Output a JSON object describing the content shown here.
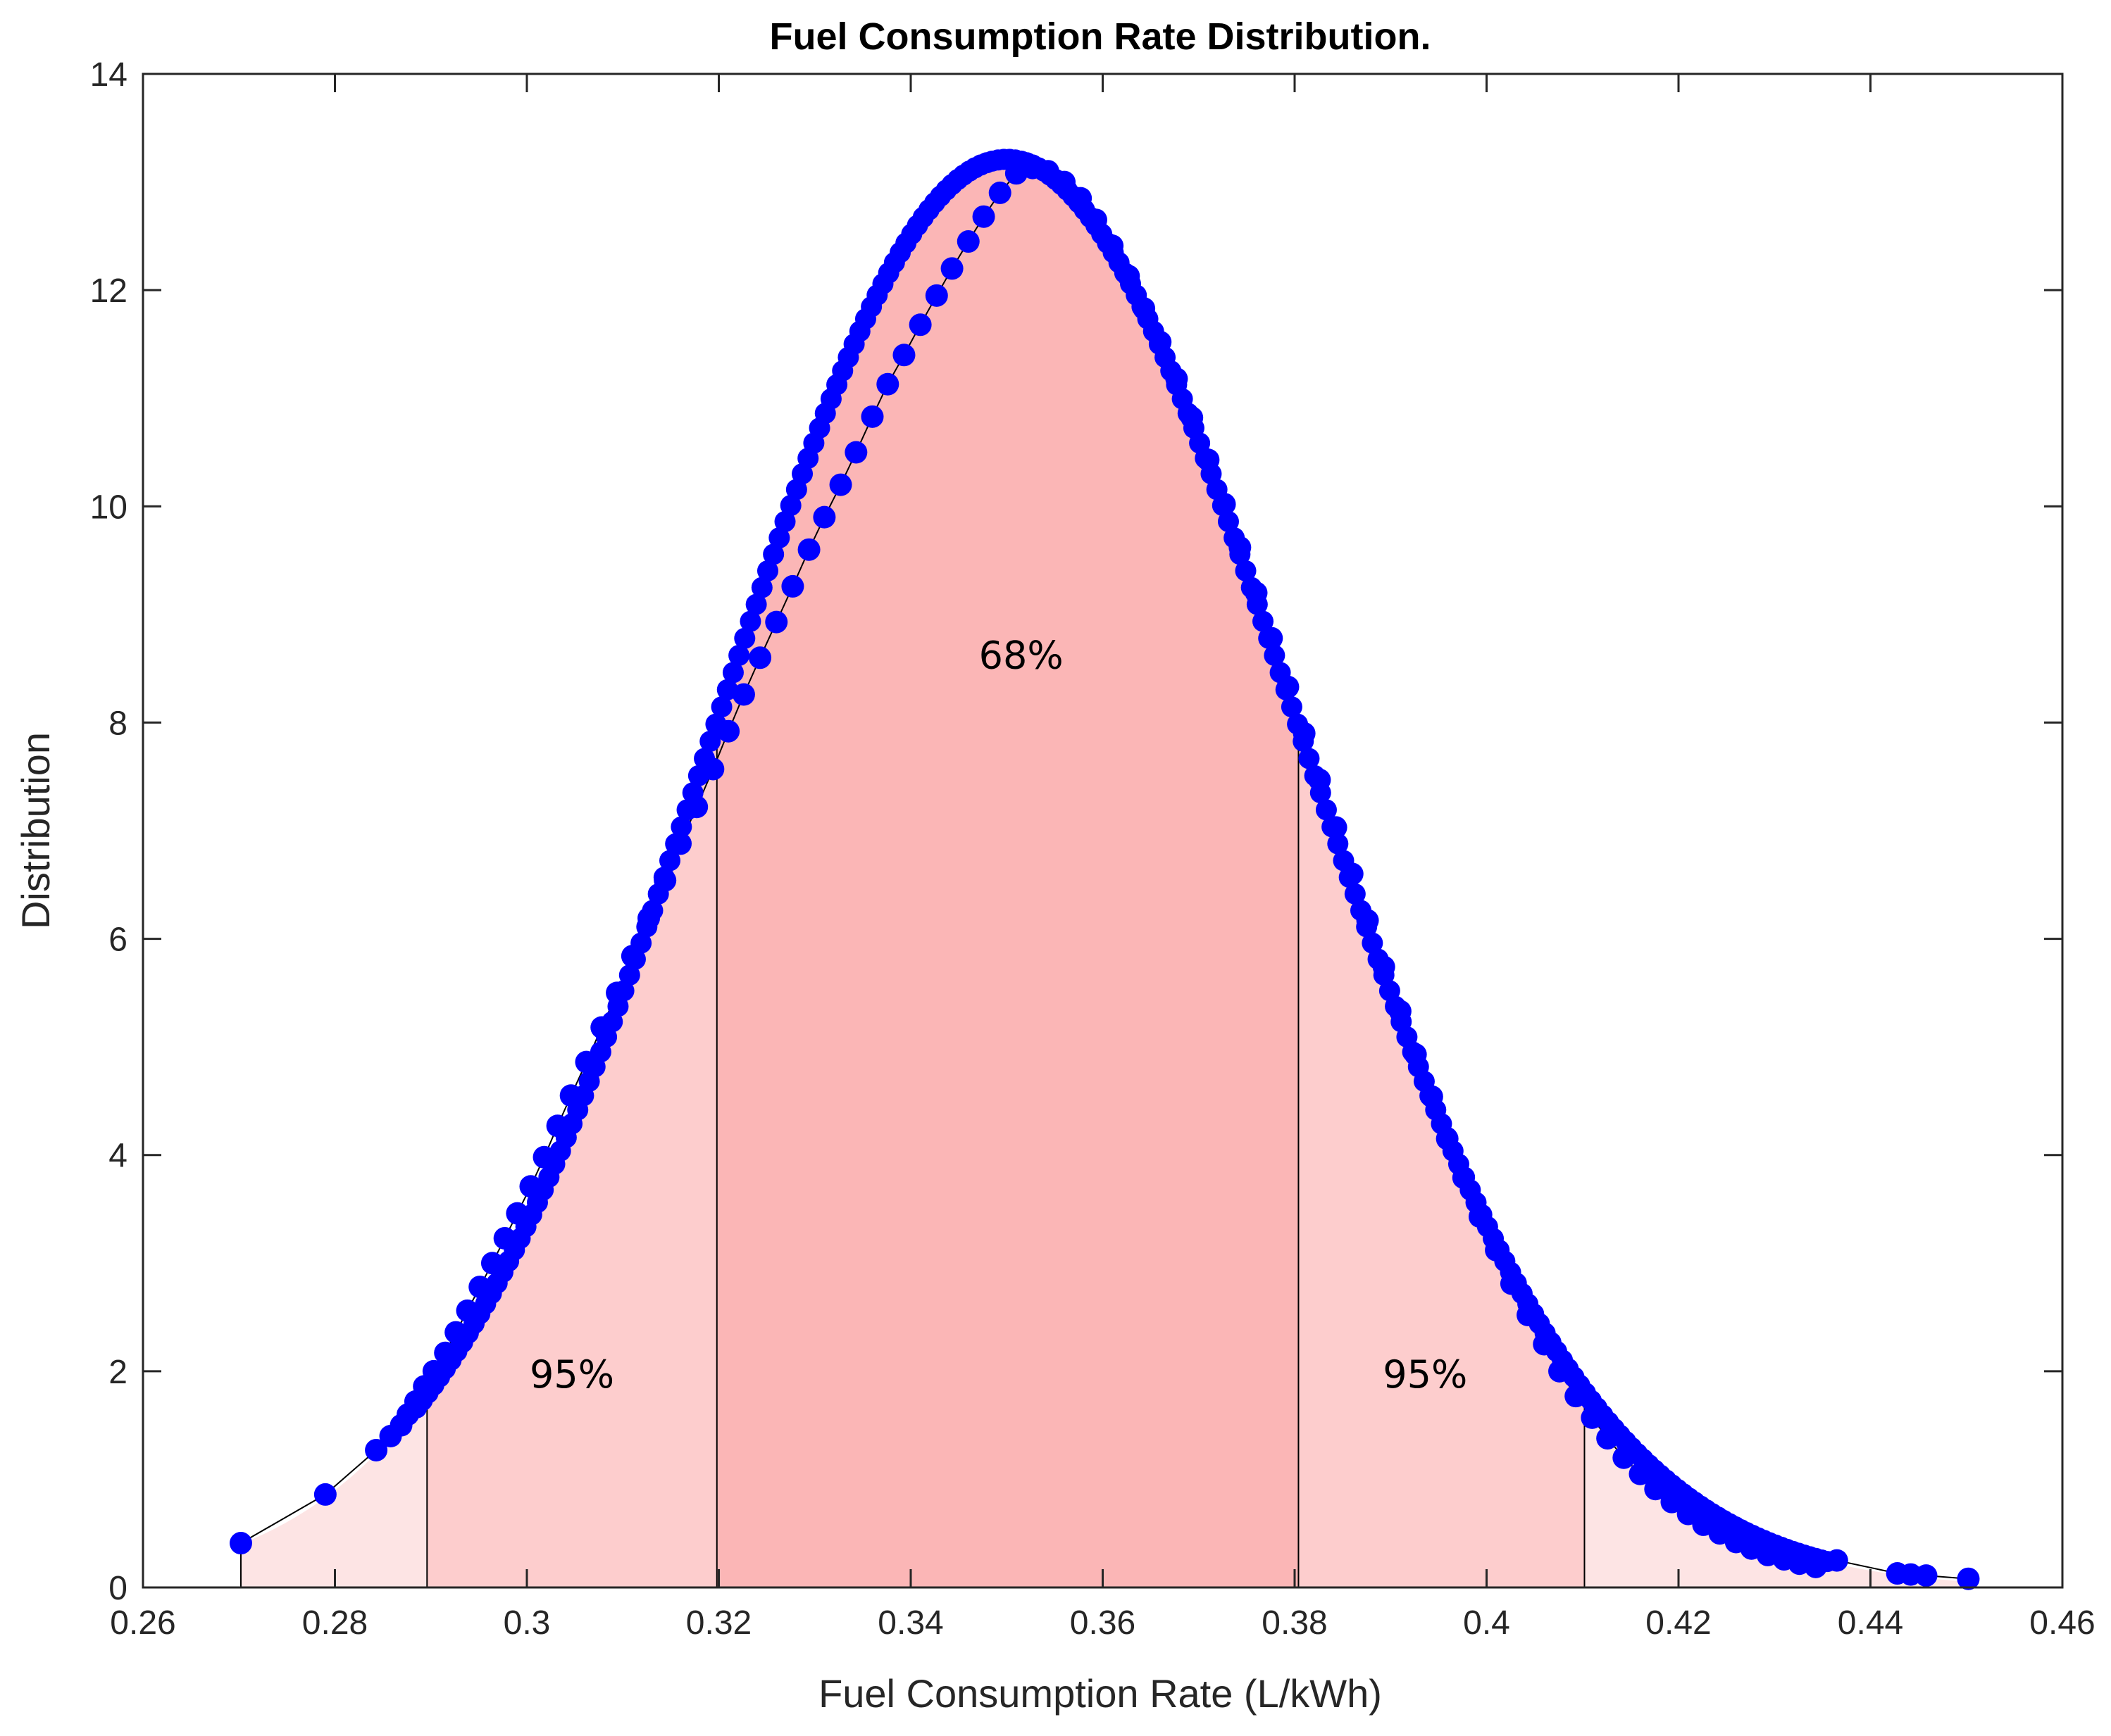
{
  "chart_data": {
    "type": "scatter",
    "title": "Fuel Consumption Rate Distribution.",
    "xlabel": "Fuel Consumption Rate (L/kWh)",
    "ylabel": "Distribution",
    "xlim": [
      0.26,
      0.46
    ],
    "ylim": [
      0,
      14
    ],
    "xticks": [
      0.26,
      0.28,
      0.3,
      0.32,
      0.34,
      0.36,
      0.38,
      0.4,
      0.42,
      0.44,
      0.46
    ],
    "xtick_labels": [
      "0.26",
      "0.28",
      "0.3",
      "0.32",
      "0.34",
      "0.36",
      "0.38",
      "0.4",
      "0.42",
      "0.44",
      "0.46"
    ],
    "yticks": [
      0,
      2,
      4,
      6,
      8,
      10,
      12,
      14
    ],
    "ytick_labels": [
      "0",
      "2",
      "4",
      "6",
      "8",
      "10",
      "12",
      "14"
    ],
    "grid": false,
    "distribution": {
      "name": "normal",
      "mean": 0.35,
      "std": 0.0302
    },
    "series": [
      {
        "name": "samples",
        "marker": "circle",
        "color": "#0000ff",
        "x": [
          0.2702,
          0.279,
          0.2843,
          0.2858,
          0.2869,
          0.2876,
          0.2884,
          0.2893,
          0.2903,
          0.2915,
          0.2926,
          0.2938,
          0.2951,
          0.2964,
          0.2977,
          0.299,
          0.3004,
          0.3018,
          0.3032,
          0.3046,
          0.3062,
          0.3078,
          0.3094,
          0.311,
          0.3127,
          0.3144,
          0.316,
          0.3177,
          0.3194,
          0.321,
          0.3226,
          0.3243,
          0.326,
          0.3277,
          0.3294,
          0.331,
          0.3327,
          0.3343,
          0.336,
          0.3376,
          0.3393,
          0.341,
          0.3427,
          0.3443,
          0.346,
          0.3476,
          0.3493,
          0.351,
          0.3527,
          0.3543,
          0.356,
          0.3577,
          0.3593,
          0.361,
          0.3627,
          0.3643,
          0.366,
          0.3677,
          0.3693,
          0.371,
          0.3727,
          0.3743,
          0.376,
          0.3776,
          0.3793,
          0.381,
          0.3826,
          0.3843,
          0.386,
          0.3876,
          0.3893,
          0.391,
          0.3926,
          0.3943,
          0.3959,
          0.3976,
          0.3993,
          0.401,
          0.4026,
          0.4043,
          0.406,
          0.4076,
          0.4093,
          0.411,
          0.4126,
          0.4143,
          0.416,
          0.4176,
          0.4193,
          0.421,
          0.4226,
          0.4243,
          0.426,
          0.4276,
          0.4293,
          0.431,
          0.4326,
          0.4343,
          0.4365,
          0.4428,
          0.4442,
          0.4458,
          0.4502
        ],
        "y": [
          0.41,
          0.86,
          1.27,
          1.4,
          1.5,
          1.6,
          1.72,
          1.86,
          2.0,
          2.17,
          2.36,
          2.56,
          2.78,
          3.0,
          3.23,
          3.46,
          3.71,
          3.98,
          4.27,
          4.55,
          4.86,
          5.18,
          5.5,
          5.84,
          6.19,
          6.54,
          6.88,
          7.22,
          7.57,
          7.92,
          8.26,
          8.6,
          8.93,
          9.26,
          9.6,
          9.9,
          10.2,
          10.5,
          10.83,
          11.13,
          11.4,
          11.68,
          11.95,
          12.2,
          12.45,
          12.68,
          12.9,
          13.08,
          13.13,
          13.1,
          13.0,
          12.85,
          12.65,
          12.41,
          12.13,
          11.83,
          11.52,
          11.18,
          10.82,
          10.43,
          10.02,
          9.62,
          9.2,
          8.78,
          8.33,
          7.9,
          7.47,
          7.03,
          6.6,
          6.17,
          5.74,
          5.33,
          4.93,
          4.54,
          4.15,
          3.79,
          3.43,
          3.12,
          2.81,
          2.52,
          2.25,
          2.0,
          1.77,
          1.57,
          1.38,
          1.2,
          1.05,
          0.91,
          0.79,
          0.68,
          0.58,
          0.5,
          0.42,
          0.36,
          0.3,
          0.26,
          0.22,
          0.19,
          0.25,
          0.13,
          0.12,
          0.11,
          0.08
        ]
      }
    ],
    "shaded_regions": [
      {
        "x_start": 0.2702,
        "x_end": 0.2896,
        "color": "#fde4e4"
      },
      {
        "x_start": 0.2896,
        "x_end": 0.3198,
        "color": "#fdcdcd"
      },
      {
        "x_start": 0.3198,
        "x_end": 0.3804,
        "color": "#fbb6b6"
      },
      {
        "x_start": 0.3804,
        "x_end": 0.4102,
        "color": "#fdcdcd"
      },
      {
        "x_start": 0.4102,
        "x_end": 0.4502,
        "color": "#fde4e4"
      }
    ],
    "vertical_lines": [
      0.2702,
      0.2896,
      0.3198,
      0.3804,
      0.4102
    ],
    "annotations": [
      {
        "text": "68%",
        "x": 0.3515,
        "y": 8.5
      },
      {
        "text": "95%",
        "x": 0.3047,
        "y": 1.85
      },
      {
        "text": "95%",
        "x": 0.3936,
        "y": 1.85
      }
    ]
  }
}
